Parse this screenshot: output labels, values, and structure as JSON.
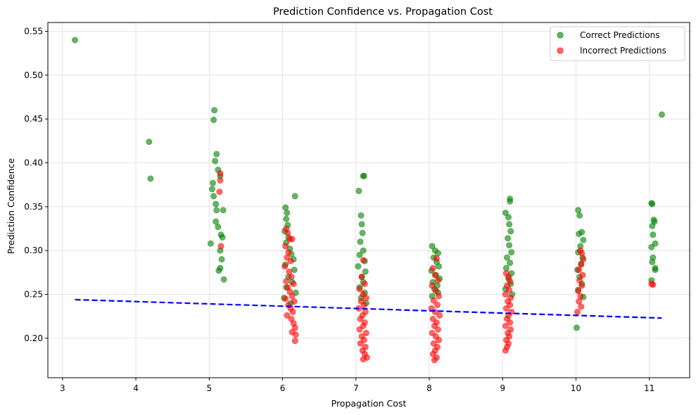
{
  "chart_data": {
    "type": "scatter",
    "title": "Prediction Confidence vs. Propagation Cost",
    "xlabel": "Propagation Cost",
    "ylabel": "Prediction Confidence",
    "xlim": [
      2.8,
      11.55
    ],
    "ylim": [
      0.155,
      0.56
    ],
    "xticks": [
      3,
      4,
      5,
      6,
      7,
      8,
      9,
      10,
      11
    ],
    "yticks": [
      0.2,
      0.25,
      0.3,
      0.35,
      0.4,
      0.45,
      0.5,
      0.55
    ],
    "xtick_labels": [
      "3",
      "4",
      "5",
      "6",
      "7",
      "8",
      "9",
      "10",
      "11"
    ],
    "ytick_labels": [
      "0.20",
      "0.25",
      "0.30",
      "0.35",
      "0.40",
      "0.45",
      "0.50",
      "0.55"
    ],
    "grid": true,
    "legend_position": "top-right",
    "series": [
      {
        "name": "Correct Predictions",
        "color": "#008000",
        "points": [
          [
            3.17,
            0.54
          ],
          [
            4.18,
            0.424
          ],
          [
            4.2,
            0.382
          ],
          [
            11.17,
            0.455
          ],
          [
            5.07,
            0.46
          ],
          [
            5.06,
            0.449
          ],
          [
            5.1,
            0.41
          ],
          [
            5.08,
            0.402
          ],
          [
            5.12,
            0.392
          ],
          [
            5.05,
            0.377
          ],
          [
            5.15,
            0.385
          ],
          [
            5.04,
            0.37
          ],
          [
            5.06,
            0.362
          ],
          [
            5.09,
            0.353
          ],
          [
            5.1,
            0.346
          ],
          [
            5.19,
            0.346
          ],
          [
            5.12,
            0.327
          ],
          [
            5.09,
            0.333
          ],
          [
            5.16,
            0.318
          ],
          [
            5.18,
            0.315
          ],
          [
            5.02,
            0.308
          ],
          [
            5.15,
            0.3
          ],
          [
            5.17,
            0.29
          ],
          [
            5.15,
            0.28
          ],
          [
            5.13,
            0.277
          ],
          [
            5.2,
            0.267
          ],
          [
            6.04,
            0.349
          ],
          [
            6.06,
            0.343
          ],
          [
            6.05,
            0.336
          ],
          [
            6.07,
            0.329
          ],
          [
            6.03,
            0.322
          ],
          [
            6.08,
            0.315
          ],
          [
            6.05,
            0.309
          ],
          [
            6.17,
            0.362
          ],
          [
            6.1,
            0.302
          ],
          [
            6.12,
            0.296
          ],
          [
            6.15,
            0.29
          ],
          [
            6.04,
            0.284
          ],
          [
            6.16,
            0.278
          ],
          [
            6.08,
            0.27
          ],
          [
            6.13,
            0.264
          ],
          [
            6.05,
            0.258
          ],
          [
            6.18,
            0.252
          ],
          [
            6.02,
            0.246
          ],
          [
            6.11,
            0.24
          ],
          [
            7.04,
            0.368
          ],
          [
            7.1,
            0.385
          ],
          [
            7.11,
            0.385
          ],
          [
            7.07,
            0.34
          ],
          [
            7.08,
            0.33
          ],
          [
            7.09,
            0.32
          ],
          [
            7.06,
            0.31
          ],
          [
            7.1,
            0.3
          ],
          [
            7.05,
            0.295
          ],
          [
            7.12,
            0.288
          ],
          [
            7.03,
            0.282
          ],
          [
            7.13,
            0.276
          ],
          [
            7.08,
            0.27
          ],
          [
            7.1,
            0.264
          ],
          [
            7.05,
            0.258
          ],
          [
            7.12,
            0.252
          ],
          [
            7.07,
            0.246
          ],
          [
            7.14,
            0.24
          ],
          [
            8.04,
            0.305
          ],
          [
            8.08,
            0.3
          ],
          [
            8.12,
            0.297
          ],
          [
            8.06,
            0.292
          ],
          [
            8.1,
            0.287
          ],
          [
            8.13,
            0.282
          ],
          [
            8.03,
            0.277
          ],
          [
            8.09,
            0.272
          ],
          [
            8.14,
            0.268
          ],
          [
            8.05,
            0.264
          ],
          [
            8.11,
            0.26
          ],
          [
            8.07,
            0.256
          ],
          [
            8.12,
            0.252
          ],
          [
            8.04,
            0.248
          ],
          [
            9.04,
            0.343
          ],
          [
            9.1,
            0.359
          ],
          [
            9.1,
            0.356
          ],
          [
            9.08,
            0.338
          ],
          [
            9.09,
            0.33
          ],
          [
            9.11,
            0.322
          ],
          [
            9.07,
            0.314
          ],
          [
            9.09,
            0.306
          ],
          [
            9.12,
            0.298
          ],
          [
            9.06,
            0.292
          ],
          [
            9.1,
            0.286
          ],
          [
            9.05,
            0.28
          ],
          [
            9.12,
            0.274
          ],
          [
            9.08,
            0.268
          ],
          [
            9.11,
            0.262
          ],
          [
            9.04,
            0.256
          ],
          [
            9.13,
            0.25
          ],
          [
            10.03,
            0.346
          ],
          [
            10.05,
            0.34
          ],
          [
            10.04,
            0.319
          ],
          [
            10.08,
            0.321
          ],
          [
            10.1,
            0.312
          ],
          [
            10.06,
            0.305
          ],
          [
            10.03,
            0.298
          ],
          [
            10.09,
            0.292
          ],
          [
            10.07,
            0.285
          ],
          [
            10.02,
            0.278
          ],
          [
            10.05,
            0.27
          ],
          [
            10.08,
            0.262
          ],
          [
            10.03,
            0.255
          ],
          [
            10.1,
            0.247
          ],
          [
            10.01,
            0.212
          ],
          [
            11.03,
            0.354
          ],
          [
            11.04,
            0.353
          ],
          [
            11.06,
            0.335
          ],
          [
            11.07,
            0.333
          ],
          [
            11.04,
            0.328
          ],
          [
            11.05,
            0.318
          ],
          [
            11.08,
            0.308
          ],
          [
            11.03,
            0.304
          ],
          [
            11.05,
            0.292
          ],
          [
            11.04,
            0.287
          ],
          [
            11.08,
            0.28
          ],
          [
            11.08,
            0.278
          ],
          [
            11.03,
            0.266
          ]
        ]
      },
      {
        "name": "Incorrect Predictions",
        "color": "#ff0000",
        "points": [
          [
            5.15,
            0.388
          ],
          [
            5.15,
            0.38
          ],
          [
            5.14,
            0.367
          ],
          [
            5.16,
            0.305
          ],
          [
            6.05,
            0.325
          ],
          [
            6.07,
            0.32
          ],
          [
            6.1,
            0.313
          ],
          [
            6.13,
            0.313
          ],
          [
            6.04,
            0.305
          ],
          [
            6.08,
            0.298
          ],
          [
            6.06,
            0.292
          ],
          [
            6.11,
            0.288
          ],
          [
            6.03,
            0.282
          ],
          [
            6.09,
            0.276
          ],
          [
            6.12,
            0.27
          ],
          [
            6.05,
            0.265
          ],
          [
            6.15,
            0.262
          ],
          [
            6.07,
            0.258
          ],
          [
            6.1,
            0.253
          ],
          [
            6.13,
            0.248
          ],
          [
            6.04,
            0.245
          ],
          [
            6.16,
            0.242
          ],
          [
            6.08,
            0.238
          ],
          [
            6.11,
            0.234
          ],
          [
            6.14,
            0.23
          ],
          [
            6.06,
            0.226
          ],
          [
            6.12,
            0.222
          ],
          [
            6.15,
            0.217
          ],
          [
            6.17,
            0.212
          ],
          [
            6.13,
            0.207
          ],
          [
            6.18,
            0.204
          ],
          [
            6.17,
            0.197
          ],
          [
            7.1,
            0.289
          ],
          [
            7.08,
            0.27
          ],
          [
            7.12,
            0.262
          ],
          [
            7.05,
            0.256
          ],
          [
            7.1,
            0.25
          ],
          [
            7.14,
            0.246
          ],
          [
            7.07,
            0.242
          ],
          [
            7.11,
            0.238
          ],
          [
            7.04,
            0.234
          ],
          [
            7.13,
            0.23
          ],
          [
            7.09,
            0.226
          ],
          [
            7.06,
            0.222
          ],
          [
            7.12,
            0.218
          ],
          [
            7.1,
            0.214
          ],
          [
            7.05,
            0.21
          ],
          [
            7.14,
            0.206
          ],
          [
            7.08,
            0.202
          ],
          [
            7.11,
            0.198
          ],
          [
            7.06,
            0.194
          ],
          [
            7.13,
            0.19
          ],
          [
            7.09,
            0.186
          ],
          [
            7.12,
            0.182
          ],
          [
            7.15,
            0.178
          ],
          [
            7.1,
            0.176
          ],
          [
            8.05,
            0.28
          ],
          [
            8.1,
            0.291
          ],
          [
            8.08,
            0.272
          ],
          [
            8.12,
            0.266
          ],
          [
            8.04,
            0.26
          ],
          [
            8.09,
            0.254
          ],
          [
            8.13,
            0.248
          ],
          [
            8.06,
            0.243
          ],
          [
            8.11,
            0.238
          ],
          [
            8.03,
            0.234
          ],
          [
            8.08,
            0.23
          ],
          [
            8.14,
            0.226
          ],
          [
            8.05,
            0.222
          ],
          [
            8.1,
            0.218
          ],
          [
            8.07,
            0.214
          ],
          [
            8.12,
            0.21
          ],
          [
            8.04,
            0.206
          ],
          [
            8.09,
            0.202
          ],
          [
            8.13,
            0.198
          ],
          [
            8.06,
            0.194
          ],
          [
            8.11,
            0.19
          ],
          [
            8.08,
            0.186
          ],
          [
            8.05,
            0.182
          ],
          [
            8.1,
            0.178
          ],
          [
            8.07,
            0.175
          ],
          [
            9.05,
            0.274
          ],
          [
            9.08,
            0.27
          ],
          [
            9.1,
            0.265
          ],
          [
            9.06,
            0.26
          ],
          [
            9.09,
            0.255
          ],
          [
            9.04,
            0.25
          ],
          [
            9.11,
            0.246
          ],
          [
            9.07,
            0.242
          ],
          [
            9.1,
            0.238
          ],
          [
            9.05,
            0.234
          ],
          [
            9.12,
            0.23
          ],
          [
            9.08,
            0.226
          ],
          [
            9.06,
            0.222
          ],
          [
            9.1,
            0.218
          ],
          [
            9.04,
            0.214
          ],
          [
            9.11,
            0.21
          ],
          [
            9.07,
            0.206
          ],
          [
            9.09,
            0.202
          ],
          [
            9.05,
            0.198
          ],
          [
            9.08,
            0.194
          ],
          [
            9.06,
            0.19
          ],
          [
            9.04,
            0.186
          ],
          [
            10.06,
            0.3
          ],
          [
            10.08,
            0.297
          ],
          [
            10.1,
            0.29
          ],
          [
            10.07,
            0.284
          ],
          [
            10.04,
            0.278
          ],
          [
            10.09,
            0.272
          ],
          [
            10.05,
            0.266
          ],
          [
            10.08,
            0.26
          ],
          [
            10.03,
            0.254
          ],
          [
            10.06,
            0.248
          ],
          [
            10.04,
            0.242
          ],
          [
            10.07,
            0.236
          ],
          [
            10.02,
            0.23
          ],
          [
            11.03,
            0.262
          ],
          [
            11.05,
            0.261
          ]
        ]
      }
    ],
    "trendline": {
      "style": "dashed",
      "color": "#0000ff",
      "points": [
        [
          3.17,
          0.244
        ],
        [
          11.17,
          0.223
        ]
      ]
    }
  }
}
